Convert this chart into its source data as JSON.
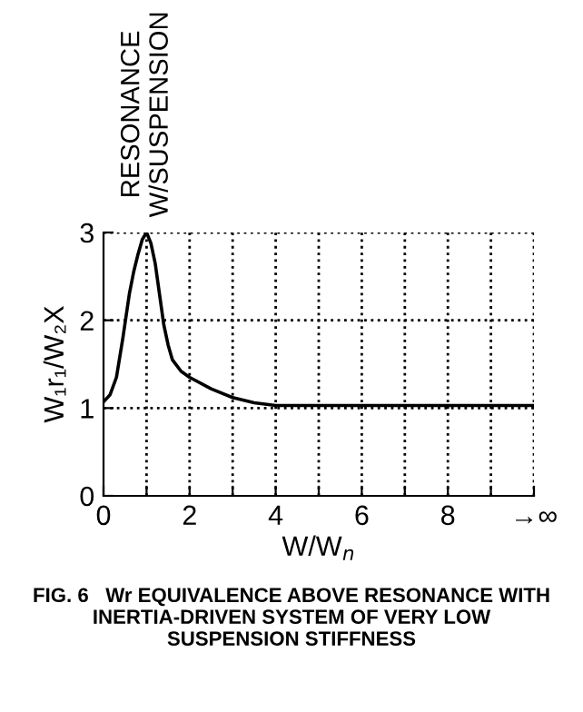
{
  "chart_data": {
    "type": "line",
    "xlabel": "W/W$_{n}$",
    "ylabel": "W₁r₁/W₂X",
    "x": [
      0,
      0.15,
      0.3,
      0.45,
      0.6,
      0.7,
      0.8,
      0.9,
      1,
      1.1,
      1.2,
      1.3,
      1.4,
      1.5,
      1.6,
      1.8,
      2,
      2.5,
      3,
      3.5,
      4,
      5,
      6,
      7,
      8,
      9,
      10
    ],
    "series": [
      {
        "color": "#000000",
        "values": [
          1.07,
          1.15,
          1.35,
          1.8,
          2.3,
          2.55,
          2.75,
          2.92,
          3.0,
          2.88,
          2.65,
          2.3,
          1.95,
          1.72,
          1.55,
          1.42,
          1.35,
          1.22,
          1.12,
          1.06,
          1.03,
          1.03,
          1.03,
          1.03,
          1.03,
          1.03,
          1.03
        ]
      }
    ],
    "xlim": [
      0,
      10
    ],
    "ylim": [
      0,
      3
    ],
    "xticks": [
      0,
      {
        "value": 1,
        "label": null
      },
      2,
      {
        "value": 3,
        "label": null
      },
      4,
      {
        "value": 5,
        "label": null
      },
      6,
      {
        "value": 7,
        "label": null
      },
      8,
      {
        "value": 9,
        "label": null
      },
      {
        "value": 10,
        "label": "→∞"
      }
    ],
    "yticks": [
      0,
      1,
      2,
      3
    ],
    "grid": true,
    "line_style": "solid",
    "marker": "none",
    "legend": false,
    "annotations": [
      {
        "text": "RESONANCE\nW/SUSPENSION",
        "x": 1,
        "y": 3
      },
      "FIG. 6   Wr EQUIVALENCE ABOVE RESONANCE WITH\nINERTIA-DRIVEN SYSTEM OF VERY LOW\nSUSPENSION STIFFNESS"
    ]
  }
}
